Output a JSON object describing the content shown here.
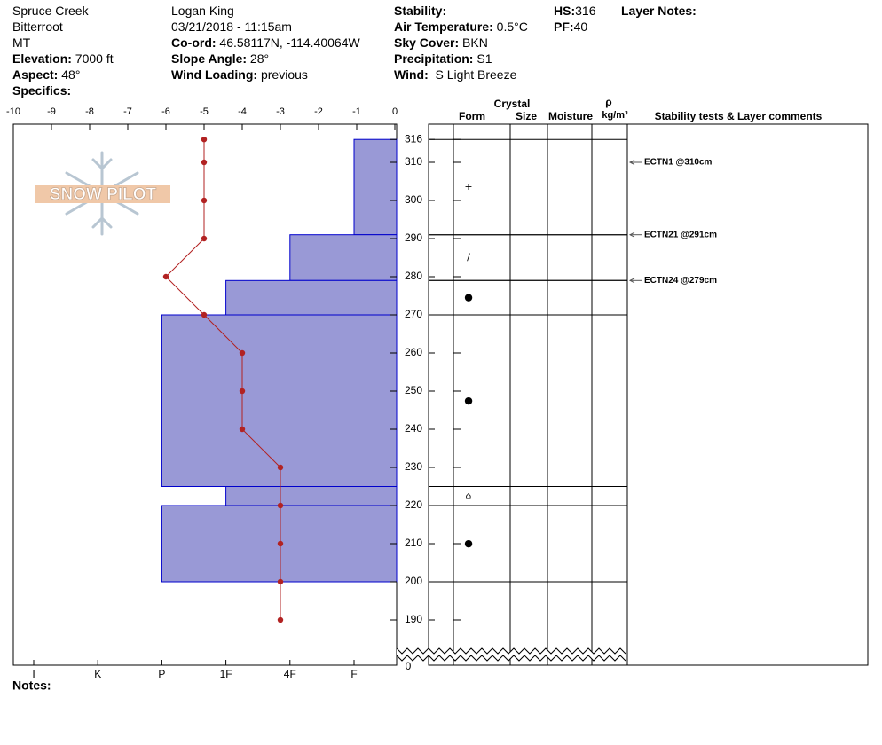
{
  "header": {
    "columns": [
      [
        {
          "value": "Spruce Creek"
        },
        {
          "value": "Bitterroot"
        },
        {
          "value": "MT"
        },
        {
          "label": "Elevation:",
          "value": " 7000 ft"
        },
        {
          "label": "Aspect:",
          "value": " 48°"
        },
        {
          "label": "Specifics:"
        }
      ],
      [
        {
          "value": "Logan King"
        },
        {
          "value": "03/21/2018 - 11:15am"
        },
        {
          "label": "Co-ord:",
          "value": " 46.58117N, -114.40064W"
        },
        {
          "label": "Slope Angle:",
          "value": " 28°"
        },
        {
          "label": "Wind Loading:",
          "value": " previous"
        }
      ],
      [
        {
          "label": "Stability:"
        },
        {
          "label": "Air Temperature:",
          "value": " 0.5°C"
        },
        {
          "label": "Sky Cover:",
          "value": " BKN"
        },
        {
          "label": "Precipitation:",
          "value": " S1"
        },
        {
          "label": "Wind:",
          "value": "  S Light Breeze"
        }
      ],
      [
        {
          "label": "HS:",
          "value": "316"
        },
        {
          "label": "PF:",
          "value": "40"
        }
      ],
      [
        {
          "label": "Layer Notes:"
        }
      ]
    ]
  },
  "logo": "SNOW PILOT",
  "notes_label": "Notes:",
  "chart_data": {
    "type": "snow-profile",
    "xlim": [
      -10,
      0
    ],
    "xticks": [
      -10,
      -9,
      -8,
      -7,
      -6,
      -5,
      -4,
      -3,
      -2,
      -1,
      0
    ],
    "ylim": [
      190,
      320
    ],
    "yticks": [
      316,
      310,
      300,
      290,
      280,
      270,
      260,
      250,
      240,
      230,
      220,
      210,
      200,
      190
    ],
    "break_tick": 0,
    "hardness_ticks": [
      "I",
      "K",
      "P",
      "1F",
      "4F",
      "F"
    ],
    "temperature": {
      "color": "#b22222",
      "depth": [
        316,
        310,
        300,
        290,
        280,
        270,
        260,
        250,
        240,
        230,
        220,
        210,
        200,
        190
      ],
      "values": [
        -5,
        -5,
        -5,
        -5,
        -6,
        -5,
        -4,
        -4,
        -4,
        -3,
        -3,
        -3,
        -3,
        -3
      ]
    },
    "layer_color": "#9999d6",
    "layer_edge": "#0000cc",
    "layers": [
      {
        "top": 316,
        "bottom": 291,
        "hardness": "F",
        "form": "+"
      },
      {
        "top": 291,
        "bottom": 279,
        "hardness": "4F",
        "form": "/"
      },
      {
        "top": 279,
        "bottom": 270,
        "hardness": "1F",
        "form": "●"
      },
      {
        "top": 270,
        "bottom": 225,
        "hardness": "P",
        "form": "●"
      },
      {
        "top": 225,
        "bottom": 220,
        "hardness": "1F",
        "form": "⌂"
      },
      {
        "top": 220,
        "bottom": 200,
        "hardness": "P",
        "form": "●"
      }
    ],
    "columns": {
      "crystal": "Crystal",
      "form": "Form",
      "size": "Size",
      "moisture": "Moisture",
      "rho": "ρ",
      "density_unit": "kg/m³",
      "comments": "Stability tests & Layer comments"
    },
    "tests": [
      {
        "depth": 310,
        "label": "ECTN1 @310cm"
      },
      {
        "depth": 291,
        "label": "ECTN21 @291cm"
      },
      {
        "depth": 279,
        "label": "ECTN24 @279cm"
      }
    ]
  }
}
